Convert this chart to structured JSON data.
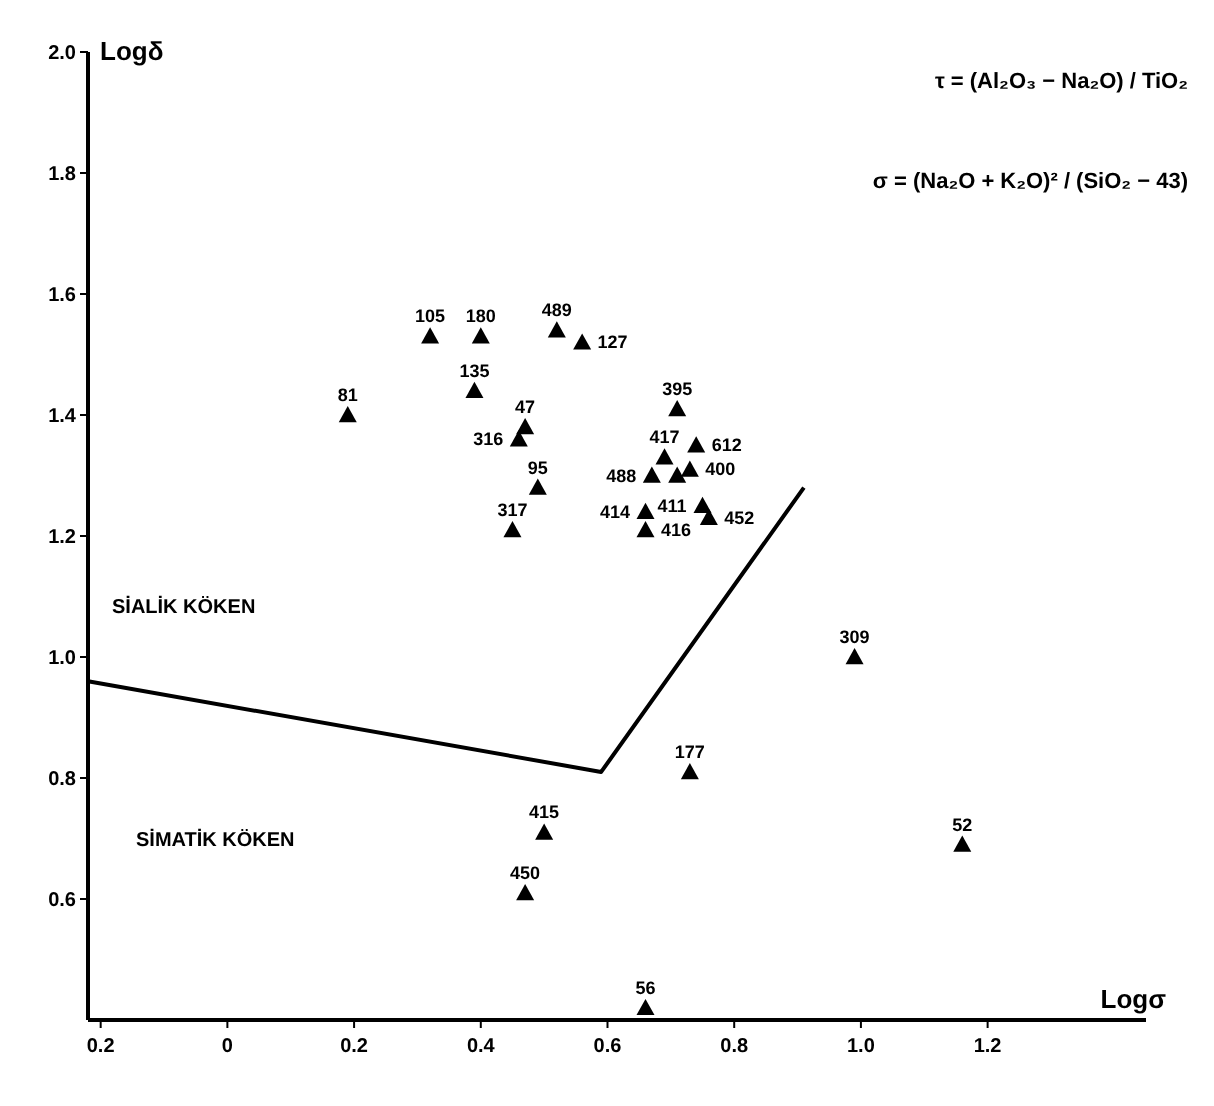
{
  "chart_data": {
    "type": "scatter",
    "xlabel": "Logσ",
    "ylabel": "Logδ",
    "xlim": [
      -0.22,
      1.45
    ],
    "ylim": [
      0.4,
      2.0
    ],
    "xticks": [
      {
        "value": -0.2,
        "label": "0.2"
      },
      0,
      0.2,
      0.4,
      0.6,
      0.8,
      {
        "value": 1,
        "label": "1.0"
      },
      1.2
    ],
    "yticks": [
      {
        "value": 0.6,
        "label": "0.6"
      },
      {
        "value": 0.8,
        "label": "0.8"
      },
      {
        "value": 1,
        "label": "1.0"
      },
      {
        "value": 1.2,
        "label": "1.2"
      },
      {
        "value": 1.4,
        "label": "1.4"
      },
      {
        "value": 1.6,
        "label": "1.6"
      },
      {
        "value": 1.8,
        "label": "1.8"
      },
      {
        "value": 2,
        "label": "2.0"
      }
    ],
    "grid": false,
    "marker": "triangle",
    "series": [
      {
        "color": "#000000",
        "x": [
          0.32,
          0.4,
          0.52,
          0.56,
          0.39,
          0.19,
          0.71,
          0.47,
          0.46,
          0.49,
          0.45,
          0.69,
          0.67,
          0.71,
          0.74,
          0.73,
          0.75,
          0.76,
          0.66,
          0.66,
          0.99,
          0.73,
          0.5,
          0.47,
          1.16,
          0.66
        ],
        "values": [
          1.53,
          1.53,
          1.54,
          1.52,
          1.44,
          1.4,
          1.41,
          1.38,
          1.36,
          1.28,
          1.21,
          1.33,
          1.3,
          1.3,
          1.35,
          1.31,
          1.25,
          1.23,
          1.24,
          1.21,
          1.0,
          0.81,
          0.71,
          0.61,
          0.69,
          0.42
        ]
      },
      {
        "type": "line",
        "color": "#000000",
        "marker": "none",
        "line_style": "solid",
        "x": [
          -0.22,
          0.59,
          0.91
        ],
        "values": [
          0.96,
          0.81,
          1.28
        ]
      }
    ],
    "annotations": [
      {
        "text": "105",
        "x": 0.32,
        "y": 1.53
      },
      {
        "text": "180",
        "x": 0.4,
        "y": 1.53
      },
      {
        "text": "489",
        "x": 0.52,
        "y": 1.54
      },
      {
        "text": "127",
        "x": 0.56,
        "y": 1.52
      },
      {
        "text": "135",
        "x": 0.39,
        "y": 1.44
      },
      {
        "text": "81",
        "x": 0.19,
        "y": 1.4
      },
      {
        "text": "395",
        "x": 0.71,
        "y": 1.41
      },
      {
        "text": "47",
        "x": 0.47,
        "y": 1.38
      },
      {
        "text": "316",
        "x": 0.46,
        "y": 1.36
      },
      {
        "text": "95",
        "x": 0.49,
        "y": 1.28
      },
      {
        "text": "317",
        "x": 0.45,
        "y": 1.21
      },
      {
        "text": "417",
        "x": 0.69,
        "y": 1.33
      },
      {
        "text": "488",
        "x": 0.67,
        "y": 1.3
      },
      {
        "text": "612",
        "x": 0.74,
        "y": 1.35
      },
      {
        "text": "400",
        "x": 0.73,
        "y": 1.31
      },
      {
        "text": "411",
        "x": 0.75,
        "y": 1.25
      },
      {
        "text": "452",
        "x": 0.76,
        "y": 1.23
      },
      {
        "text": "414",
        "x": 0.66,
        "y": 1.24
      },
      {
        "text": "416",
        "x": 0.66,
        "y": 1.21
      },
      {
        "text": "309",
        "x": 0.99,
        "y": 1.0
      },
      {
        "text": "177",
        "x": 0.73,
        "y": 0.81
      },
      {
        "text": "415",
        "x": 0.5,
        "y": 0.71
      },
      {
        "text": "450",
        "x": 0.47,
        "y": 0.61
      },
      {
        "text": "52",
        "x": 1.16,
        "y": 0.69
      },
      {
        "text": "56",
        "x": 0.66,
        "y": 0.42
      },
      "SİALİK KÖKEN",
      "SİMATİK KÖKEN",
      "τ = (Al₂O₃ − Na₂O) / TiO₂",
      "σ = (Na₂O + K₂O)² / (SiO₂ − 43)"
    ]
  }
}
